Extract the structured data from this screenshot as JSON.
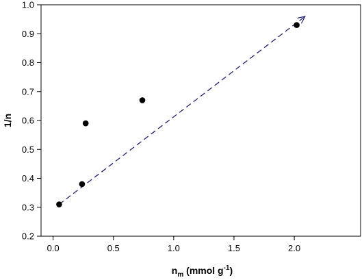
{
  "chart_data": {
    "type": "scatter",
    "xlabel": {
      "base": "n",
      "sub": "m",
      "text": " (mmol g",
      "sup": "-1",
      "close": ")"
    },
    "ylabel": "1/n",
    "xlim": [
      -0.1,
      2.55
    ],
    "ylim": [
      0.2,
      1.0
    ],
    "x_ticks": [
      0.0,
      0.5,
      1.0,
      1.5,
      2.0
    ],
    "x_tick_labels": [
      "0.0",
      "0.5",
      "1.0",
      "1.5",
      "2.0"
    ],
    "y_ticks": [
      0.2,
      0.3,
      0.4,
      0.5,
      0.6,
      0.7,
      0.8,
      0.9,
      1.0
    ],
    "y_tick_labels": [
      "0.2",
      "0.3",
      "0.4",
      "0.5",
      "0.6",
      "0.7",
      "0.8",
      "0.9",
      "1.0"
    ],
    "grid": false,
    "series": [
      {
        "points": [
          {
            "x": 0.05,
            "y": 0.31
          },
          {
            "x": 0.24,
            "y": 0.38
          },
          {
            "x": 0.27,
            "y": 0.59
          },
          {
            "x": 0.74,
            "y": 0.67
          },
          {
            "x": 2.02,
            "y": 0.93
          }
        ],
        "marker_color": "#000000"
      }
    ],
    "trendline": {
      "x": [
        0.05,
        2.09
      ],
      "y": [
        0.31,
        0.96
      ],
      "style": "dashed",
      "arrow": true,
      "color": "#1f1f7a"
    }
  }
}
